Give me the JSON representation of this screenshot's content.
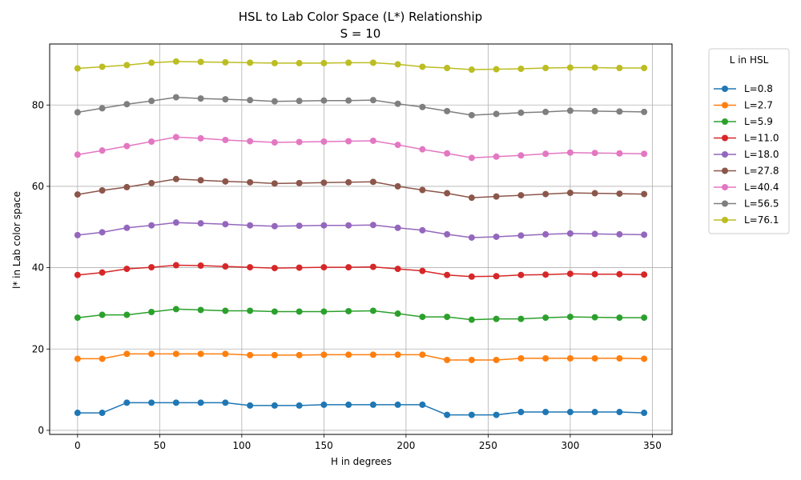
{
  "chart_data": {
    "type": "line",
    "title": "HSL to Lab Color Space (L*) Relationship",
    "subtitle": "S = 10",
    "xlabel": "H in degrees",
    "ylabel": "l* in Lab color space",
    "xlim": [
      -17,
      362
    ],
    "ylim": [
      -1,
      95
    ],
    "xticks": [
      0,
      50,
      100,
      150,
      200,
      250,
      300,
      350
    ],
    "yticks": [
      0,
      20,
      40,
      60,
      80
    ],
    "grid": true,
    "legend": {
      "title": "L in HSL",
      "placement": "outside-right"
    },
    "x": [
      0,
      15,
      30,
      45,
      60,
      75,
      90,
      105,
      120,
      135,
      150,
      165,
      180,
      195,
      210,
      225,
      240,
      255,
      270,
      285,
      300,
      315,
      330,
      345
    ],
    "series": [
      {
        "name": "L=0.8",
        "color": "#1f77b4",
        "values": [
          4.3,
          4.3,
          6.8,
          6.8,
          6.8,
          6.8,
          6.8,
          6.1,
          6.1,
          6.1,
          6.3,
          6.3,
          6.3,
          6.3,
          6.3,
          3.8,
          3.8,
          3.8,
          4.5,
          4.5,
          4.5,
          4.5,
          4.5,
          4.3
        ]
      },
      {
        "name": "L=2.7",
        "color": "#ff7f0e",
        "values": [
          17.6,
          17.6,
          18.8,
          18.8,
          18.8,
          18.8,
          18.8,
          18.5,
          18.5,
          18.5,
          18.6,
          18.6,
          18.6,
          18.6,
          18.6,
          17.3,
          17.3,
          17.3,
          17.7,
          17.7,
          17.7,
          17.7,
          17.7,
          17.6
        ]
      },
      {
        "name": "L=5.9",
        "color": "#2ca02c",
        "values": [
          27.7,
          28.4,
          28.4,
          29.1,
          29.8,
          29.6,
          29.4,
          29.4,
          29.2,
          29.2,
          29.2,
          29.3,
          29.4,
          28.7,
          27.9,
          27.9,
          27.2,
          27.4,
          27.4,
          27.7,
          27.9,
          27.8,
          27.7,
          27.7
        ]
      },
      {
        "name": "L=11.0",
        "color": "#d62728",
        "values": [
          38.2,
          38.8,
          39.7,
          40.1,
          40.6,
          40.5,
          40.3,
          40.1,
          39.9,
          40.0,
          40.1,
          40.1,
          40.2,
          39.7,
          39.2,
          38.2,
          37.8,
          37.9,
          38.2,
          38.3,
          38.5,
          38.4,
          38.4,
          38.3
        ]
      },
      {
        "name": "L=18.0",
        "color": "#9467bd",
        "values": [
          48.0,
          48.7,
          49.8,
          50.4,
          51.1,
          50.9,
          50.7,
          50.4,
          50.2,
          50.3,
          50.4,
          50.4,
          50.5,
          49.8,
          49.2,
          48.2,
          47.4,
          47.6,
          47.9,
          48.2,
          48.4,
          48.3,
          48.2,
          48.1
        ]
      },
      {
        "name": "L=27.8",
        "color": "#8c564b",
        "values": [
          58.0,
          59.0,
          59.8,
          60.8,
          61.8,
          61.5,
          61.2,
          61.0,
          60.7,
          60.8,
          60.9,
          61.0,
          61.1,
          60.0,
          59.1,
          58.3,
          57.2,
          57.5,
          57.8,
          58.1,
          58.4,
          58.3,
          58.2,
          58.1
        ]
      },
      {
        "name": "L=40.4",
        "color": "#e377c2",
        "values": [
          67.8,
          68.8,
          69.9,
          71.0,
          72.1,
          71.8,
          71.4,
          71.1,
          70.8,
          70.9,
          71.0,
          71.1,
          71.2,
          70.2,
          69.1,
          68.1,
          67.0,
          67.3,
          67.6,
          68.0,
          68.3,
          68.2,
          68.1,
          68.0
        ]
      },
      {
        "name": "L=56.5",
        "color": "#7f7f7f",
        "values": [
          78.2,
          79.2,
          80.2,
          81.0,
          81.9,
          81.6,
          81.4,
          81.2,
          80.9,
          81.0,
          81.1,
          81.1,
          81.2,
          80.3,
          79.5,
          78.5,
          77.5,
          77.8,
          78.1,
          78.3,
          78.6,
          78.5,
          78.4,
          78.3
        ]
      },
      {
        "name": "L=76.1",
        "color": "#bcbd22",
        "values": [
          89.0,
          89.4,
          89.8,
          90.4,
          90.7,
          90.6,
          90.5,
          90.4,
          90.3,
          90.3,
          90.3,
          90.4,
          90.4,
          90.0,
          89.4,
          89.1,
          88.7,
          88.8,
          88.9,
          89.1,
          89.2,
          89.2,
          89.1,
          89.1
        ]
      }
    ]
  }
}
